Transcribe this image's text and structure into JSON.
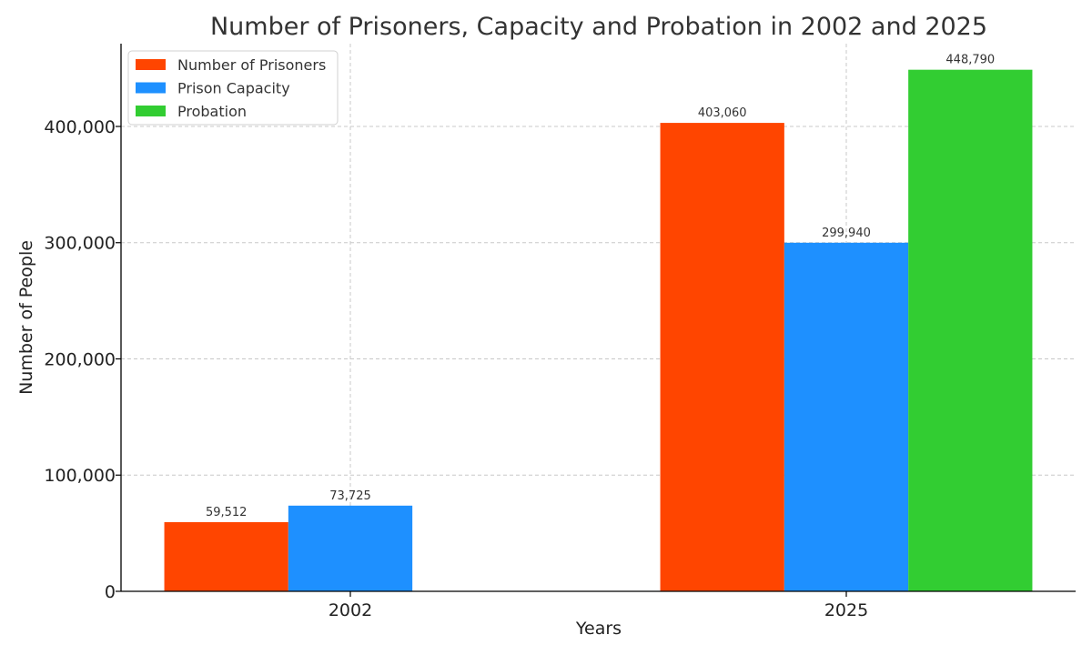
{
  "chart_data": {
    "type": "bar",
    "title": "Number of Prisoners, Capacity and Probation in 2002 and 2025",
    "xlabel": "Years",
    "ylabel": "Number of People",
    "categories": [
      "2002",
      "2025"
    ],
    "series": [
      {
        "name": "Number of Prisoners",
        "color": "#ff4500",
        "values": [
          59512,
          403060
        ],
        "labels": [
          "59,512",
          "403,060"
        ]
      },
      {
        "name": "Prison Capacity",
        "color": "#1e90ff",
        "values": [
          73725,
          299940
        ],
        "labels": [
          "73,725",
          "299,940"
        ]
      },
      {
        "name": "Probation",
        "color": "#32cd32",
        "values": [
          null,
          448790
        ],
        "labels": [
          null,
          "448,790"
        ]
      }
    ],
    "ylim": [
      0,
      471230
    ],
    "yticks": [
      0,
      100000,
      200000,
      300000,
      400000
    ],
    "ytick_labels": [
      "0",
      "100,000",
      "200,000",
      "300,000",
      "400,000"
    ],
    "grid": true,
    "legend_position": "top-left"
  }
}
